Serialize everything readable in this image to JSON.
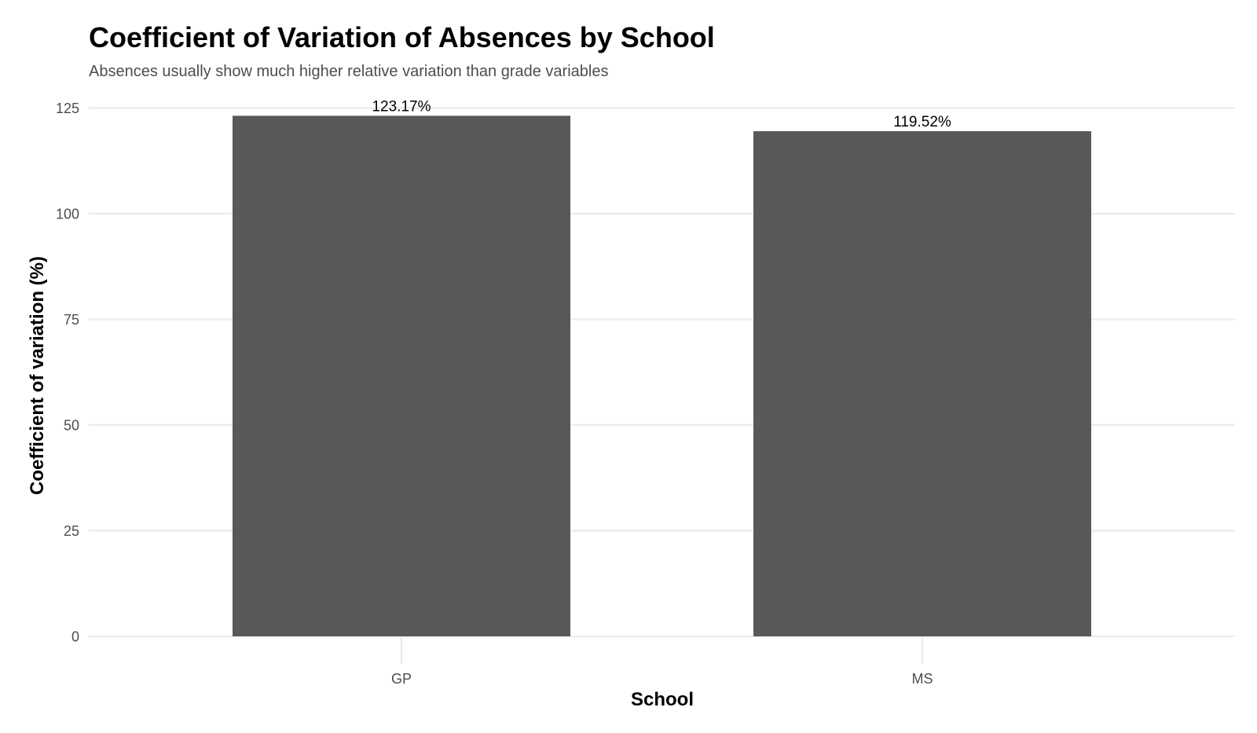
{
  "chart_data": {
    "type": "bar",
    "title": "Coefficient of Variation of Absences by School",
    "subtitle": "Absences usually show much higher relative variation than grade variables",
    "xlabel": "School",
    "ylabel": "Coefficient of variation (%)",
    "categories": [
      "GP",
      "MS"
    ],
    "values": [
      123.17,
      119.52
    ],
    "data_labels": [
      "123.17%",
      "119.52%"
    ],
    "yticks": [
      0,
      25,
      50,
      75,
      100,
      125
    ],
    "ylim": [
      0,
      125
    ],
    "grid": true,
    "legend": "none",
    "bar_color": "#595959"
  }
}
